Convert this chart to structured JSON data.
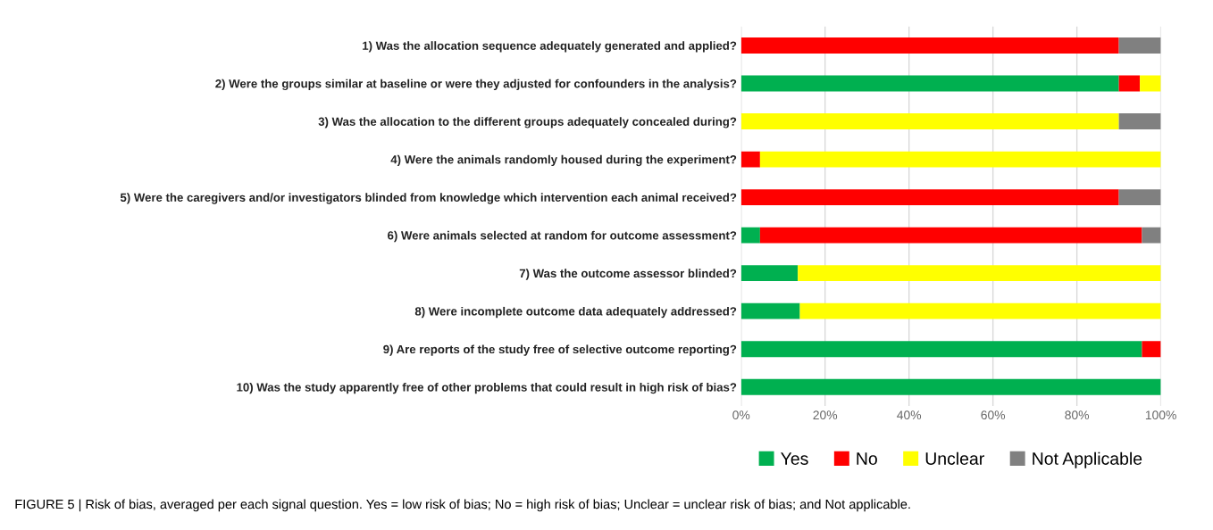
{
  "chart_data": {
    "type": "bar",
    "orientation": "horizontal",
    "stacked": true,
    "categories": [
      "1) Was the allocation sequence adequately generated and applied?",
      "2) Were the groups similar at baseline or were they adjusted for confounders in the analysis?",
      "3) Was the allocation to the different groups adequately concealed during?",
      "4) Were the animals randomly housed during the experiment?",
      "5) Were the caregivers and/or investigators blinded from knowledge which intervention each animal received?",
      "6) Were animals selected at random for outcome assessment?",
      "7) Was the outcome assessor blinded?",
      "8) Were incomplete outcome data adequately addressed?",
      "9) Are reports of the study free of selective outcome reporting?",
      "10) Was the study apparently free of other problems that could result in high risk of bias?"
    ],
    "series": [
      {
        "name": "Yes",
        "color": "#00b050",
        "values": [
          0,
          90,
          0,
          0,
          0,
          4.5,
          13.5,
          14,
          95.5,
          100
        ]
      },
      {
        "name": "No",
        "color": "#ff0000",
        "values": [
          90,
          5,
          0,
          4.5,
          90,
          91,
          0,
          0,
          4.5,
          0
        ]
      },
      {
        "name": "Unclear",
        "color": "#ffff00",
        "values": [
          0,
          5,
          90,
          95.5,
          0,
          0,
          86.5,
          86,
          0,
          0
        ]
      },
      {
        "name": "Not Applicable",
        "color": "#808080",
        "values": [
          10,
          0,
          10,
          0,
          10,
          4.5,
          0,
          0,
          0,
          0
        ]
      }
    ],
    "xlim": [
      0,
      100
    ],
    "xticks": [
      {
        "value": 0,
        "label": "0%"
      },
      {
        "value": 20,
        "label": "20%"
      },
      {
        "value": 40,
        "label": "40%"
      },
      {
        "value": 60,
        "label": "60%"
      },
      {
        "value": 80,
        "label": "80%"
      },
      {
        "value": 100,
        "label": "100%"
      }
    ],
    "grid": "x",
    "legend": "bottom",
    "annotations": [
      "FIGURE 5 | Risk of bias, averaged per each signal question. Yes = low risk of bias; No = high risk of bias; Unclear = unclear risk of bias; and Not applicable."
    ]
  }
}
